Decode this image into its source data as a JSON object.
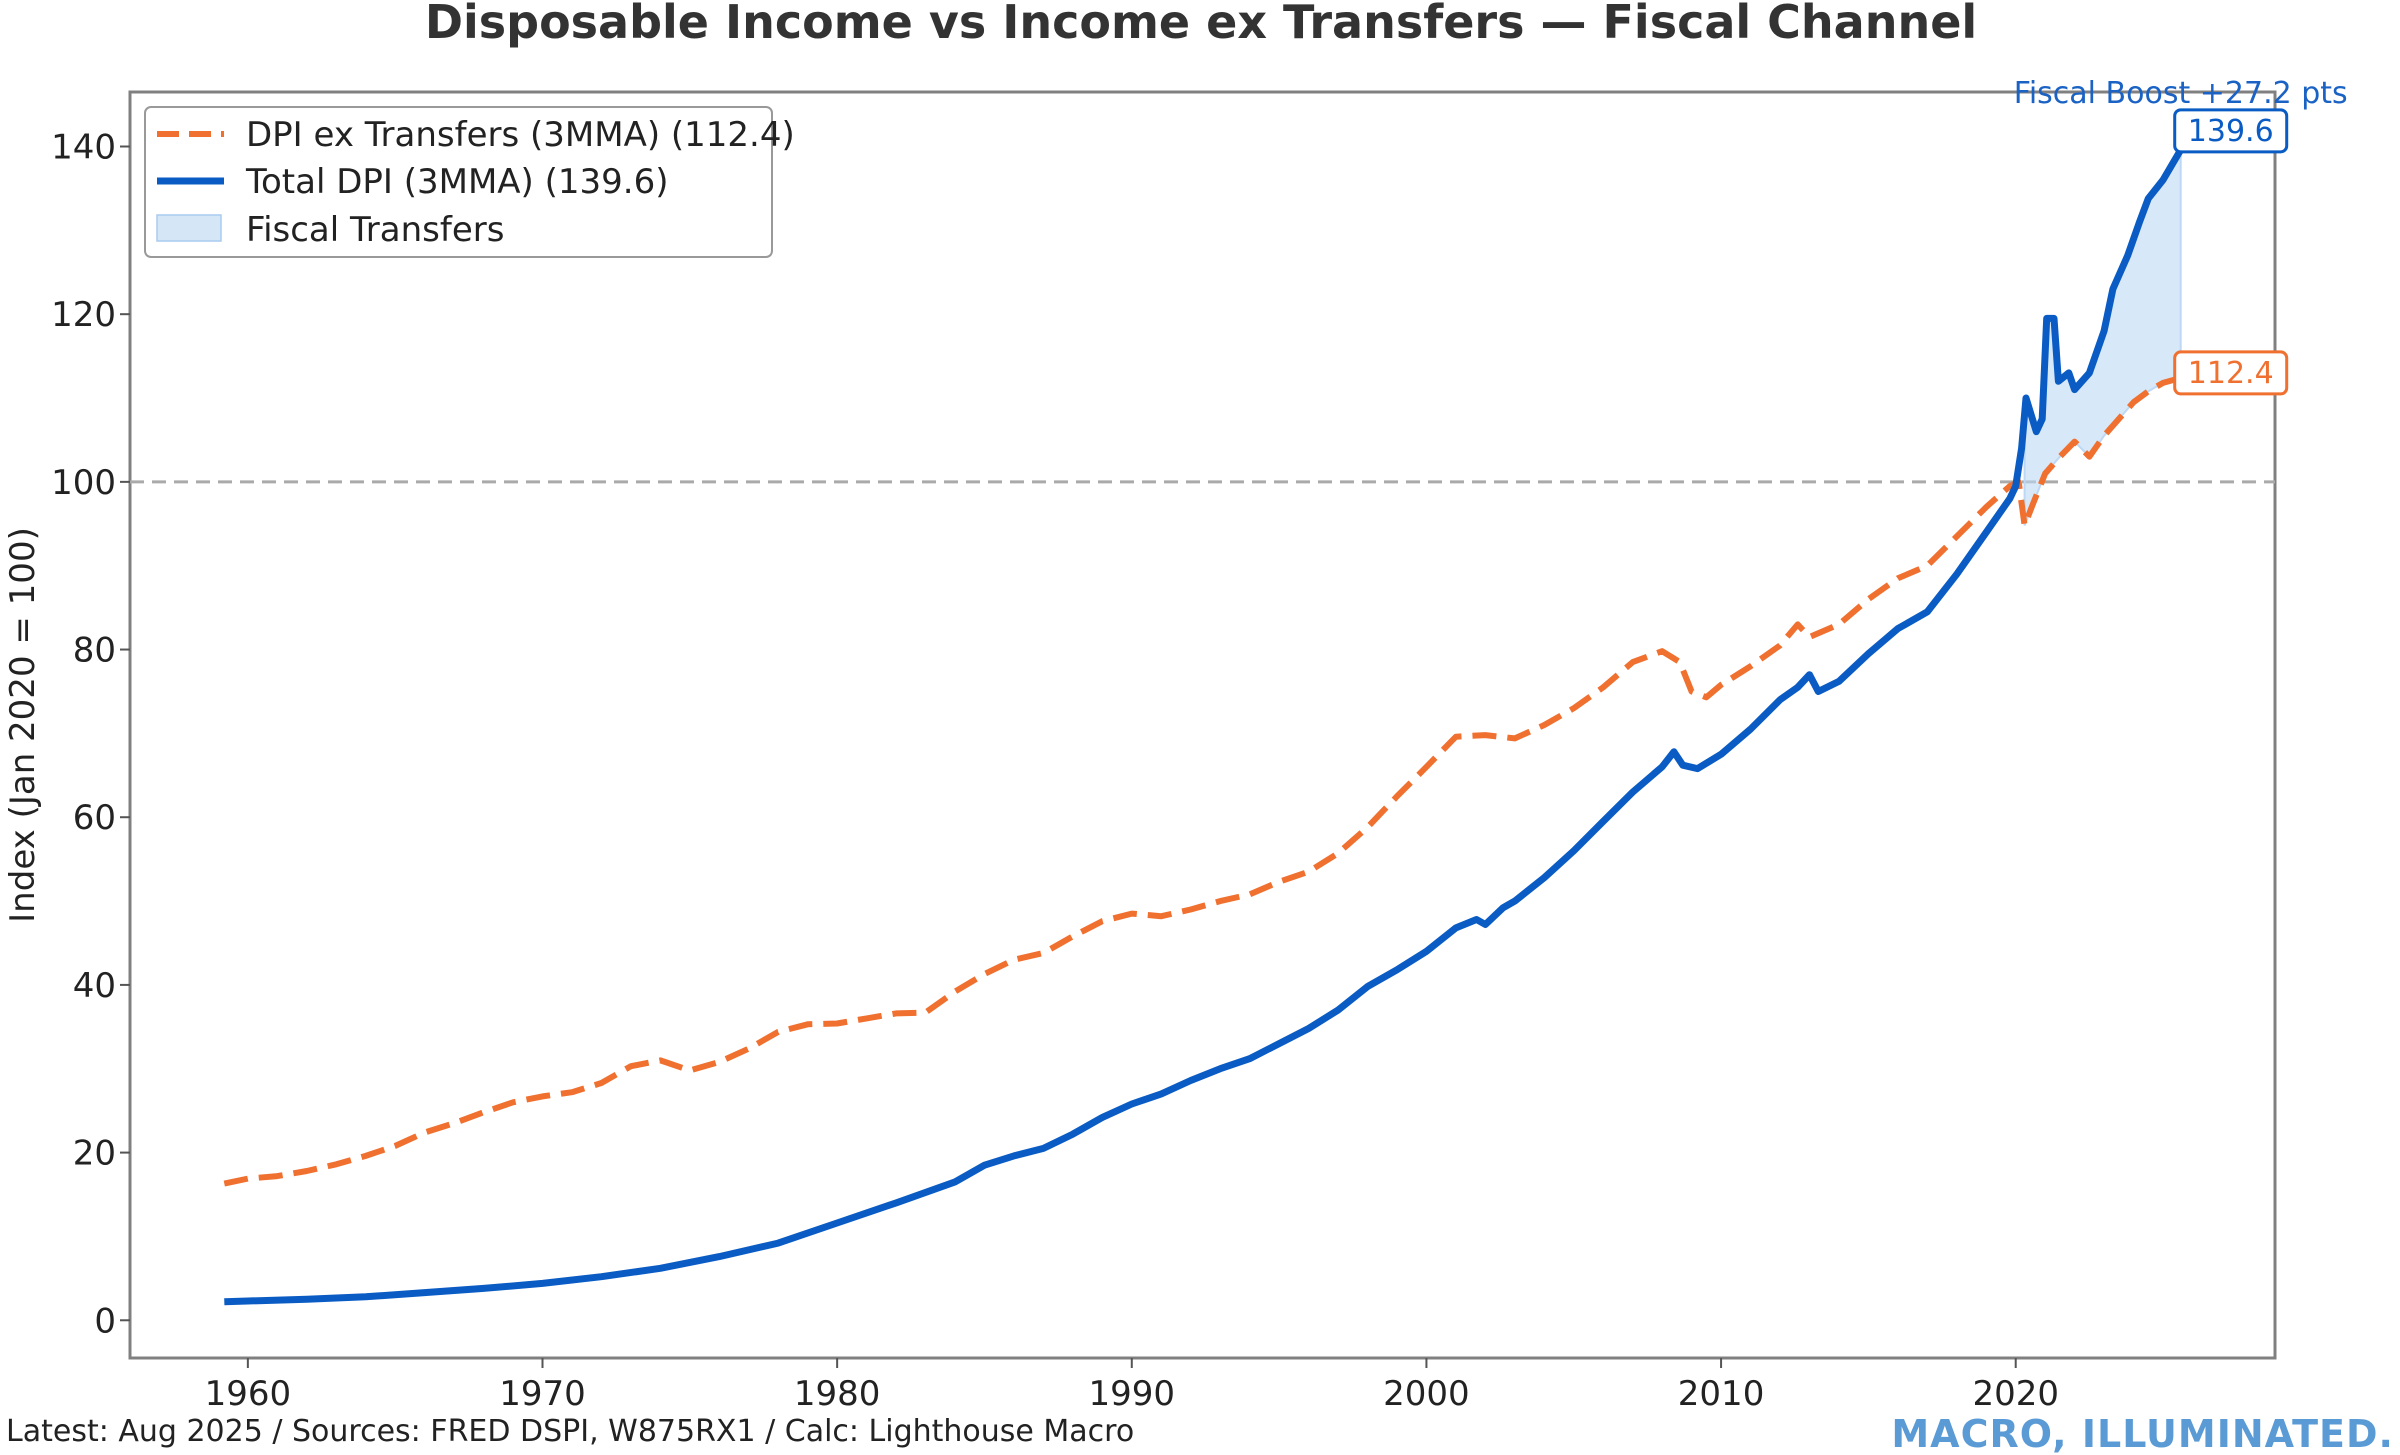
{
  "chart_data": {
    "type": "line",
    "title": "Disposable Income vs Income ex Transfers — Fiscal Channel",
    "xlabel": "",
    "ylabel": "Index (Jan 2020 = 100)",
    "xlim": [
      1956,
      2028.8
    ],
    "ylim": [
      -4.5,
      146.5
    ],
    "xticks": [
      1960,
      1970,
      1980,
      1990,
      2000,
      2010,
      2020
    ],
    "xtick_labels": [
      "1960",
      "1970",
      "1980",
      "1990",
      "2000",
      "2010",
      "2020"
    ],
    "yticks": [
      0,
      20,
      40,
      60,
      80,
      100,
      120,
      140
    ],
    "ytick_labels": [
      "0",
      "20",
      "40",
      "60",
      "80",
      "100",
      "120",
      "140"
    ],
    "reference_line": {
      "y": 100,
      "style": "dashed",
      "color": "#aaaaaa"
    },
    "legend_position": "top-left",
    "series": [
      {
        "name": "DPI ex Transfers (3MMA)",
        "legend_label": "DPI ex Transfers (3MMA) (112.4)",
        "color": "#f07030",
        "style": "dashed",
        "end_label": "112.4",
        "points": [
          [
            1959.2,
            16.3
          ],
          [
            1960,
            16.9
          ],
          [
            1961,
            17.2
          ],
          [
            1962,
            17.8
          ],
          [
            1963,
            18.6
          ],
          [
            1964,
            19.6
          ],
          [
            1965,
            20.8
          ],
          [
            1966,
            22.4
          ],
          [
            1967,
            23.5
          ],
          [
            1968,
            24.8
          ],
          [
            1969,
            26
          ],
          [
            1970,
            26.7
          ],
          [
            1971,
            27.2
          ],
          [
            1972,
            28.3
          ],
          [
            1973,
            30.3
          ],
          [
            1974,
            31
          ],
          [
            1975,
            29.8
          ],
          [
            1976,
            30.8
          ],
          [
            1977,
            32.4
          ],
          [
            1978,
            34.4
          ],
          [
            1979,
            35.3
          ],
          [
            1980,
            35.4
          ],
          [
            1981,
            36
          ],
          [
            1982,
            36.6
          ],
          [
            1983,
            36.7
          ],
          [
            1984,
            39.2
          ],
          [
            1985,
            41.3
          ],
          [
            1986,
            43
          ],
          [
            1987,
            43.8
          ],
          [
            1988,
            45.8
          ],
          [
            1989,
            47.6
          ],
          [
            1990,
            48.5
          ],
          [
            1991,
            48.2
          ],
          [
            1992,
            49
          ],
          [
            1993,
            50
          ],
          [
            1994,
            50.8
          ],
          [
            1995,
            52.3
          ],
          [
            1996,
            53.5
          ],
          [
            1997,
            55.7
          ],
          [
            1998,
            58.8
          ],
          [
            1999,
            62.5
          ],
          [
            2000,
            66
          ],
          [
            2001,
            69.6
          ],
          [
            2002,
            69.8
          ],
          [
            2003,
            69.4
          ],
          [
            2004,
            71
          ],
          [
            2005,
            73
          ],
          [
            2006,
            75.5
          ],
          [
            2007,
            78.5
          ],
          [
            2008,
            79.8
          ],
          [
            2008.6,
            78.5
          ],
          [
            2009,
            75
          ],
          [
            2009.5,
            74.3
          ],
          [
            2010,
            75.8
          ],
          [
            2011,
            78
          ],
          [
            2012,
            80.5
          ],
          [
            2012.6,
            83
          ],
          [
            2013,
            81.5
          ],
          [
            2014,
            83
          ],
          [
            2015,
            86
          ],
          [
            2016,
            88.5
          ],
          [
            2017,
            90
          ],
          [
            2018,
            93.5
          ],
          [
            2019,
            97
          ],
          [
            2019.8,
            99.5
          ],
          [
            2020.1,
            100
          ],
          [
            2020.3,
            94.8
          ],
          [
            2020.6,
            97.5
          ],
          [
            2021,
            101
          ],
          [
            2021.5,
            103
          ],
          [
            2022,
            104.8
          ],
          [
            2022.5,
            103
          ],
          [
            2023,
            105.5
          ],
          [
            2023.5,
            107.5
          ],
          [
            2024,
            109.5
          ],
          [
            2024.5,
            110.8
          ],
          [
            2025,
            111.8
          ],
          [
            2025.6,
            112.4
          ]
        ]
      },
      {
        "name": "Total DPI (3MMA)",
        "legend_label": "Total DPI (3MMA) (139.6)",
        "color": "#0a5cc4",
        "style": "solid",
        "end_label": "139.6",
        "points": [
          [
            1959.2,
            2.2
          ],
          [
            1960,
            2.3
          ],
          [
            1962,
            2.5
          ],
          [
            1964,
            2.8
          ],
          [
            1966,
            3.3
          ],
          [
            1968,
            3.8
          ],
          [
            1970,
            4.4
          ],
          [
            1972,
            5.2
          ],
          [
            1974,
            6.2
          ],
          [
            1976,
            7.6
          ],
          [
            1978,
            9.2
          ],
          [
            1980,
            11.6
          ],
          [
            1982,
            14
          ],
          [
            1984,
            16.5
          ],
          [
            1985,
            18.5
          ],
          [
            1986,
            19.6
          ],
          [
            1987,
            20.5
          ],
          [
            1988,
            22.2
          ],
          [
            1989,
            24.2
          ],
          [
            1990,
            25.8
          ],
          [
            1991,
            27
          ],
          [
            1992,
            28.6
          ],
          [
            1993,
            30
          ],
          [
            1994,
            31.2
          ],
          [
            1995,
            33
          ],
          [
            1996,
            34.8
          ],
          [
            1997,
            37
          ],
          [
            1998,
            39.8
          ],
          [
            1999,
            41.8
          ],
          [
            2000,
            44
          ],
          [
            2001,
            46.8
          ],
          [
            2001.7,
            47.8
          ],
          [
            2002,
            47.2
          ],
          [
            2002.6,
            49.2
          ],
          [
            2003,
            50
          ],
          [
            2004,
            52.8
          ],
          [
            2005,
            56
          ],
          [
            2006,
            59.5
          ],
          [
            2007,
            63
          ],
          [
            2008,
            66
          ],
          [
            2008.4,
            67.8
          ],
          [
            2008.7,
            66.2
          ],
          [
            2009.2,
            65.8
          ],
          [
            2010,
            67.5
          ],
          [
            2011,
            70.5
          ],
          [
            2012,
            74
          ],
          [
            2012.6,
            75.5
          ],
          [
            2013,
            77
          ],
          [
            2013.3,
            75
          ],
          [
            2014,
            76.2
          ],
          [
            2015,
            79.5
          ],
          [
            2016,
            82.5
          ],
          [
            2017,
            84.5
          ],
          [
            2018,
            89
          ],
          [
            2019,
            94
          ],
          [
            2019.8,
            98
          ],
          [
            2020,
            99.5
          ],
          [
            2020.2,
            104
          ],
          [
            2020.35,
            110
          ],
          [
            2020.7,
            106
          ],
          [
            2020.9,
            107.5
          ],
          [
            2021.05,
            119.5
          ],
          [
            2021.3,
            119.5
          ],
          [
            2021.45,
            112
          ],
          [
            2021.8,
            113
          ],
          [
            2022,
            111
          ],
          [
            2022.5,
            113
          ],
          [
            2023,
            118
          ],
          [
            2023.3,
            123
          ],
          [
            2023.8,
            127
          ],
          [
            2024.2,
            131
          ],
          [
            2024.5,
            133.8
          ],
          [
            2025,
            136
          ],
          [
            2025.6,
            139.6
          ]
        ]
      }
    ],
    "fill_between": {
      "name": "Fiscal Transfers",
      "legend_label": "Fiscal Transfers",
      "color": "#bcd8f4",
      "x_start": 2020.3,
      "x_end": 2025.6
    },
    "annotations": [
      {
        "text": "Fiscal Boost +27.2 pts",
        "x": 2025.6,
        "y": 145.2,
        "color": "#1a62c4"
      }
    ]
  },
  "footer": {
    "source": "Latest: Aug 2025 / Sources: FRED DSPI, W875RX1 / Calc: Lighthouse Macro",
    "brand": "MACRO, ILLUMINATED."
  }
}
